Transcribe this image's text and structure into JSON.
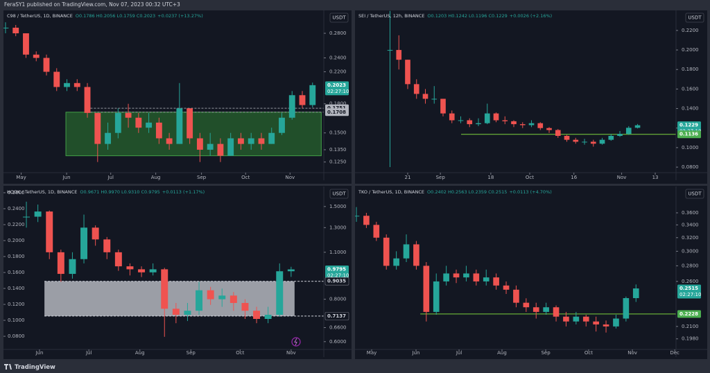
{
  "header": {
    "text": "FeraSY1 published on TradingView.com, Nov 07, 2023 00:32 UTC+3"
  },
  "footer": {
    "brand": "TradingView"
  },
  "chart_data": [
    {
      "type": "candlestick",
      "symbol": "C98 / TetherUS, 1D, BINANCE",
      "ohlc": "O0.1786 H0.2056 L0.1759 C0.2023",
      "change": "+0.0237 (+13.27%)",
      "currency": "USDT",
      "color_up": "#26a69a",
      "color_down": "#ef5350",
      "log_scale": true,
      "close": [
        0.29,
        0.28,
        0.245,
        0.24,
        0.22,
        0.2,
        0.205,
        0.2,
        0.17,
        0.14,
        0.15,
        0.17,
        0.165,
        0.155,
        0.16,
        0.145,
        0.14,
        0.175,
        0.145,
        0.135,
        0.14,
        0.13,
        0.145,
        0.14,
        0.145,
        0.14,
        0.15,
        0.165,
        0.19,
        0.1786,
        0.2023
      ],
      "high": [
        0.3,
        0.295,
        0.28,
        0.25,
        0.245,
        0.225,
        0.21,
        0.21,
        0.205,
        0.17,
        0.16,
        0.175,
        0.18,
        0.17,
        0.17,
        0.165,
        0.15,
        0.205,
        0.175,
        0.15,
        0.15,
        0.145,
        0.15,
        0.15,
        0.15,
        0.15,
        0.155,
        0.17,
        0.195,
        0.195,
        0.2056
      ],
      "low": [
        0.28,
        0.275,
        0.24,
        0.235,
        0.215,
        0.195,
        0.195,
        0.195,
        0.165,
        0.125,
        0.135,
        0.145,
        0.155,
        0.15,
        0.15,
        0.14,
        0.135,
        0.14,
        0.14,
        0.125,
        0.13,
        0.125,
        0.13,
        0.135,
        0.135,
        0.135,
        0.14,
        0.148,
        0.163,
        0.175,
        0.1759
      ],
      "xlim": [
        -0.2,
        31.1
      ],
      "xticks": [
        {
          "value": 1.53,
          "label": "May"
        },
        {
          "value": 5.97,
          "label": "Jun"
        },
        {
          "value": 10.28,
          "label": "Jul"
        },
        {
          "value": 14.68,
          "label": "Aug"
        },
        {
          "value": 19.15,
          "label": "Sep"
        },
        {
          "value": 23.46,
          "label": "Oct"
        },
        {
          "value": 27.8,
          "label": "Nov"
        }
      ],
      "ylim": [
        0.119,
        0.319
      ],
      "yticks": [
        {
          "value": 0.28,
          "label": "0.2800"
        },
        {
          "value": 0.24,
          "label": "0.2400"
        },
        {
          "value": 0.22,
          "label": "0.2200"
        },
        {
          "value": 0.18,
          "label": "0.1800"
        },
        {
          "value": 0.15,
          "label": "0.1500"
        },
        {
          "value": 0.135,
          "label": "0.1350"
        },
        {
          "value": 0.125,
          "label": "0.1250"
        }
      ],
      "zones": [
        {
          "x": [
            5.9,
            30.85
          ],
          "y": [
            0.13,
            0.1708
          ],
          "color": "rgba(46,125,50,0.55)",
          "stroke": "#43a047"
        }
      ],
      "hlines": [
        {
          "value": 0.1751,
          "from": 8.3,
          "color": "#9598a1",
          "dashed": true
        },
        {
          "value": 0.1708,
          "from": 8.3,
          "color": "#9598a1",
          "dashed": true
        }
      ],
      "price_labels": [
        {
          "value": 0.2023,
          "countdown": "02:27:10",
          "color": "#26a69a",
          "text_color": "#ffffff"
        },
        {
          "value": 0.1751,
          "color": "#b2b5be",
          "text_color": "#131722"
        },
        {
          "value": 0.1708,
          "color": "#b2b5be",
          "text_color": "#131722"
        }
      ]
    },
    {
      "type": "candlestick",
      "symbol": "SEI / TetherUS, 12h, BINANCE",
      "ohlc": "O0.1203 H0.1242 L0.1196 C0.1229",
      "change": "+0.0026 (+2.16%)",
      "currency": "USDT",
      "color_up": "#26a69a",
      "color_down": "#ef5350",
      "log_scale": false,
      "close": [
        0.2,
        0.19,
        0.165,
        0.155,
        0.15,
        0.15,
        0.135,
        0.128,
        0.128,
        0.124,
        0.125,
        0.135,
        0.128,
        0.127,
        0.124,
        0.123,
        0.125,
        0.12,
        0.118,
        0.112,
        0.108,
        0.106,
        0.106,
        0.104,
        0.108,
        0.112,
        0.114,
        0.1203,
        0.1229
      ],
      "high": [
        0.24,
        0.215,
        0.19,
        0.17,
        0.16,
        0.163,
        0.15,
        0.138,
        0.132,
        0.13,
        0.13,
        0.145,
        0.136,
        0.132,
        0.128,
        0.126,
        0.128,
        0.126,
        0.121,
        0.119,
        0.113,
        0.11,
        0.109,
        0.108,
        0.11,
        0.114,
        0.117,
        0.122,
        0.1242
      ],
      "low": [
        0.08,
        0.18,
        0.16,
        0.15,
        0.145,
        0.145,
        0.132,
        0.125,
        0.125,
        0.121,
        0.122,
        0.124,
        0.126,
        0.124,
        0.121,
        0.12,
        0.121,
        0.118,
        0.115,
        0.11,
        0.106,
        0.104,
        0.103,
        0.101,
        0.103,
        0.107,
        0.111,
        0.113,
        0.1196
      ],
      "xlim": [
        -3.96,
        32.35
      ],
      "xticks": [
        {
          "value": 2,
          "label": "21"
        },
        {
          "value": 5.7,
          "label": "Sep"
        },
        {
          "value": 11.4,
          "label": "18"
        },
        {
          "value": 15.8,
          "label": "Oct"
        },
        {
          "value": 20.8,
          "label": "16"
        },
        {
          "value": 26.2,
          "label": "Nov"
        },
        {
          "value": 30,
          "label": "13"
        }
      ],
      "ylim": [
        0.0772,
        0.2384
      ],
      "yticks": [
        {
          "value": 0.22,
          "label": "0.2200"
        },
        {
          "value": 0.2,
          "label": "0.2000"
        },
        {
          "value": 0.18,
          "label": "0.1800"
        },
        {
          "value": 0.16,
          "label": "0.1600"
        },
        {
          "value": 0.14,
          "label": "0.1400"
        },
        {
          "value": 0.12,
          "label": "0.1200"
        },
        {
          "value": 0.1,
          "label": "0.1000"
        },
        {
          "value": 0.08,
          "label": "0.0800"
        }
      ],
      "zones": [],
      "hlines": [
        {
          "value": 0.1136,
          "from": 8.04,
          "color": "#7cd33c",
          "dashed": false
        }
      ],
      "price_labels": [
        {
          "value": 0.1229,
          "countdown": "02:27:10",
          "color": "#26a69a",
          "text_color": "#ffffff"
        },
        {
          "value": 0.1136,
          "color": "#4caf50",
          "text_color": "#ffffff"
        }
      ]
    },
    {
      "type": "candlestick",
      "symbol": "HOOK / TetherUS, 1D, BINANCE",
      "ohlc": "O0.9671 H0.9970 L0.9310 C0.9795",
      "change": "+0.0113 (+1.17%)",
      "currency": "USDT",
      "color_up": "#26a69a",
      "color_down": "#ef5350",
      "log_scale": true,
      "close": [
        1.4,
        1.45,
        1.1,
        0.95,
        1.05,
        1.3,
        1.2,
        1.1,
        1.0,
        0.98,
        0.96,
        0.98,
        0.75,
        0.72,
        0.74,
        0.85,
        0.8,
        0.82,
        0.78,
        0.74,
        0.7,
        0.72,
        0.9671,
        0.9795
      ],
      "high": [
        1.55,
        1.52,
        1.46,
        1.12,
        1.1,
        1.42,
        1.32,
        1.22,
        1.12,
        1.02,
        1.0,
        1.02,
        0.99,
        0.78,
        0.78,
        0.9,
        0.87,
        0.86,
        0.84,
        0.8,
        0.76,
        0.76,
        1.02,
        0.997
      ],
      "low": [
        1.3,
        1.35,
        1.05,
        0.9,
        0.92,
        1.02,
        1.15,
        1.05,
        0.97,
        0.94,
        0.93,
        0.94,
        0.62,
        0.68,
        0.69,
        0.72,
        0.77,
        0.76,
        0.74,
        0.7,
        0.68,
        0.68,
        0.71,
        0.931
      ],
      "xlim": [
        -1.99,
        25.84
      ],
      "xticks": [
        {
          "value": 1.14,
          "label": "Jun"
        },
        {
          "value": 5.43,
          "label": "Jul"
        },
        {
          "value": 9.86,
          "label": "Aug"
        },
        {
          "value": 14.29,
          "label": "Sep"
        },
        {
          "value": 18.57,
          "label": "Oct"
        },
        {
          "value": 23,
          "label": "Nov"
        }
      ],
      "ylim": [
        0.58,
        1.694
      ],
      "yticks": [
        {
          "value": 1.5,
          "label": "1.5000"
        },
        {
          "value": 1.3,
          "label": "1.3000"
        },
        {
          "value": 1.1,
          "label": "1.1000"
        },
        {
          "value": 0.8,
          "label": "0.8000"
        },
        {
          "value": 0.66,
          "label": "0.6600"
        },
        {
          "value": 0.6,
          "label": "0.6000"
        }
      ],
      "y2lim": [
        0.067,
        0.2652
      ],
      "y2ticks": [
        {
          "value": 0.26,
          "label": "0.2600"
        },
        {
          "value": 0.24,
          "label": "0.2400"
        },
        {
          "value": 0.22,
          "label": "0.2200"
        },
        {
          "value": 0.2,
          "label": "0.2000"
        },
        {
          "value": 0.18,
          "label": "0.1800"
        },
        {
          "value": 0.16,
          "label": "0.1600"
        },
        {
          "value": 0.14,
          "label": "0.1400"
        },
        {
          "value": 0.12,
          "label": "0.1200"
        },
        {
          "value": 0.1,
          "label": "0.1000"
        },
        {
          "value": 0.08,
          "label": "0.0800"
        }
      ],
      "zones": [
        {
          "x": [
            1.57,
            23.3
          ],
          "y": [
            0.7137,
            0.9035
          ],
          "color": "rgba(190,192,200,0.8)",
          "stroke": "none"
        }
      ],
      "hlines": [
        {
          "value": 0.9035,
          "from": 1.57,
          "color": "#d1d4dc",
          "dashed": true
        },
        {
          "value": 0.7137,
          "from": 1.57,
          "color": "#d1d4dc",
          "dashed": true
        }
      ],
      "price_labels": [
        {
          "value": 0.9795,
          "countdown": "02:27:10",
          "color": "#26a69a",
          "text_color": "#ffffff"
        },
        {
          "value": 0.9035,
          "color": "#131722",
          "text_color": "#d1d4dc"
        },
        {
          "value": 0.7137,
          "color": "#131722",
          "text_color": "#d1d4dc"
        }
      ]
    },
    {
      "type": "candlestick",
      "symbol": "TKO / TetherUS, 1D, BINANCE",
      "ohlc": "O0.2402 H0.2563 L0.2359 C0.2515",
      "change": "+0.0113 (+4.70%)",
      "currency": "USDT",
      "color_up": "#26a69a",
      "color_down": "#ef5350",
      "log_scale": true,
      "close": [
        0.355,
        0.34,
        0.32,
        0.28,
        0.29,
        0.31,
        0.28,
        0.225,
        0.26,
        0.27,
        0.265,
        0.27,
        0.26,
        0.265,
        0.255,
        0.25,
        0.235,
        0.23,
        0.225,
        0.23,
        0.22,
        0.215,
        0.22,
        0.215,
        0.212,
        0.21,
        0.218,
        0.2402,
        0.2515
      ],
      "high": [
        0.37,
        0.36,
        0.345,
        0.325,
        0.3,
        0.325,
        0.315,
        0.285,
        0.27,
        0.28,
        0.275,
        0.28,
        0.275,
        0.275,
        0.27,
        0.26,
        0.255,
        0.24,
        0.235,
        0.235,
        0.232,
        0.225,
        0.225,
        0.222,
        0.22,
        0.216,
        0.222,
        0.242,
        0.2563
      ],
      "low": [
        0.345,
        0.335,
        0.315,
        0.275,
        0.275,
        0.285,
        0.275,
        0.215,
        0.222,
        0.255,
        0.258,
        0.26,
        0.255,
        0.255,
        0.25,
        0.245,
        0.23,
        0.225,
        0.218,
        0.222,
        0.215,
        0.21,
        0.212,
        0.21,
        0.205,
        0.204,
        0.208,
        0.215,
        0.2359
      ],
      "xlim": [
        -0.14,
        32.01
      ],
      "xticks": [
        {
          "value": 1.53,
          "label": "May"
        },
        {
          "value": 5.97,
          "label": "Jun"
        },
        {
          "value": 10.28,
          "label": "Jul"
        },
        {
          "value": 14.58,
          "label": "Aug"
        },
        {
          "value": 18.96,
          "label": "Sep"
        },
        {
          "value": 23.26,
          "label": "Oct"
        },
        {
          "value": 27.64,
          "label": "Nov"
        },
        {
          "value": 31.88,
          "label": "Dec"
        }
      ],
      "ylim": [
        0.1908,
        0.4039
      ],
      "yticks": [
        {
          "value": 0.36,
          "label": "0.3600"
        },
        {
          "value": 0.34,
          "label": "0.3400"
        },
        {
          "value": 0.32,
          "label": "0.3200"
        },
        {
          "value": 0.3,
          "label": "0.3000"
        },
        {
          "value": 0.28,
          "label": "0.2800"
        },
        {
          "value": 0.26,
          "label": "0.2600"
        },
        {
          "value": 0.21,
          "label": "0.2100"
        },
        {
          "value": 0.198,
          "label": "0.1980"
        }
      ],
      "zones": [],
      "hlines": [
        {
          "value": 0.2228,
          "from": 6.4,
          "color": "#7cd33c",
          "dashed": false
        }
      ],
      "price_labels": [
        {
          "value": 0.2515,
          "countdown": "02:27:10",
          "color": "#26a69a",
          "text_color": "#ffffff"
        },
        {
          "value": 0.2228,
          "color": "#4caf50",
          "text_color": "#ffffff"
        }
      ]
    }
  ]
}
